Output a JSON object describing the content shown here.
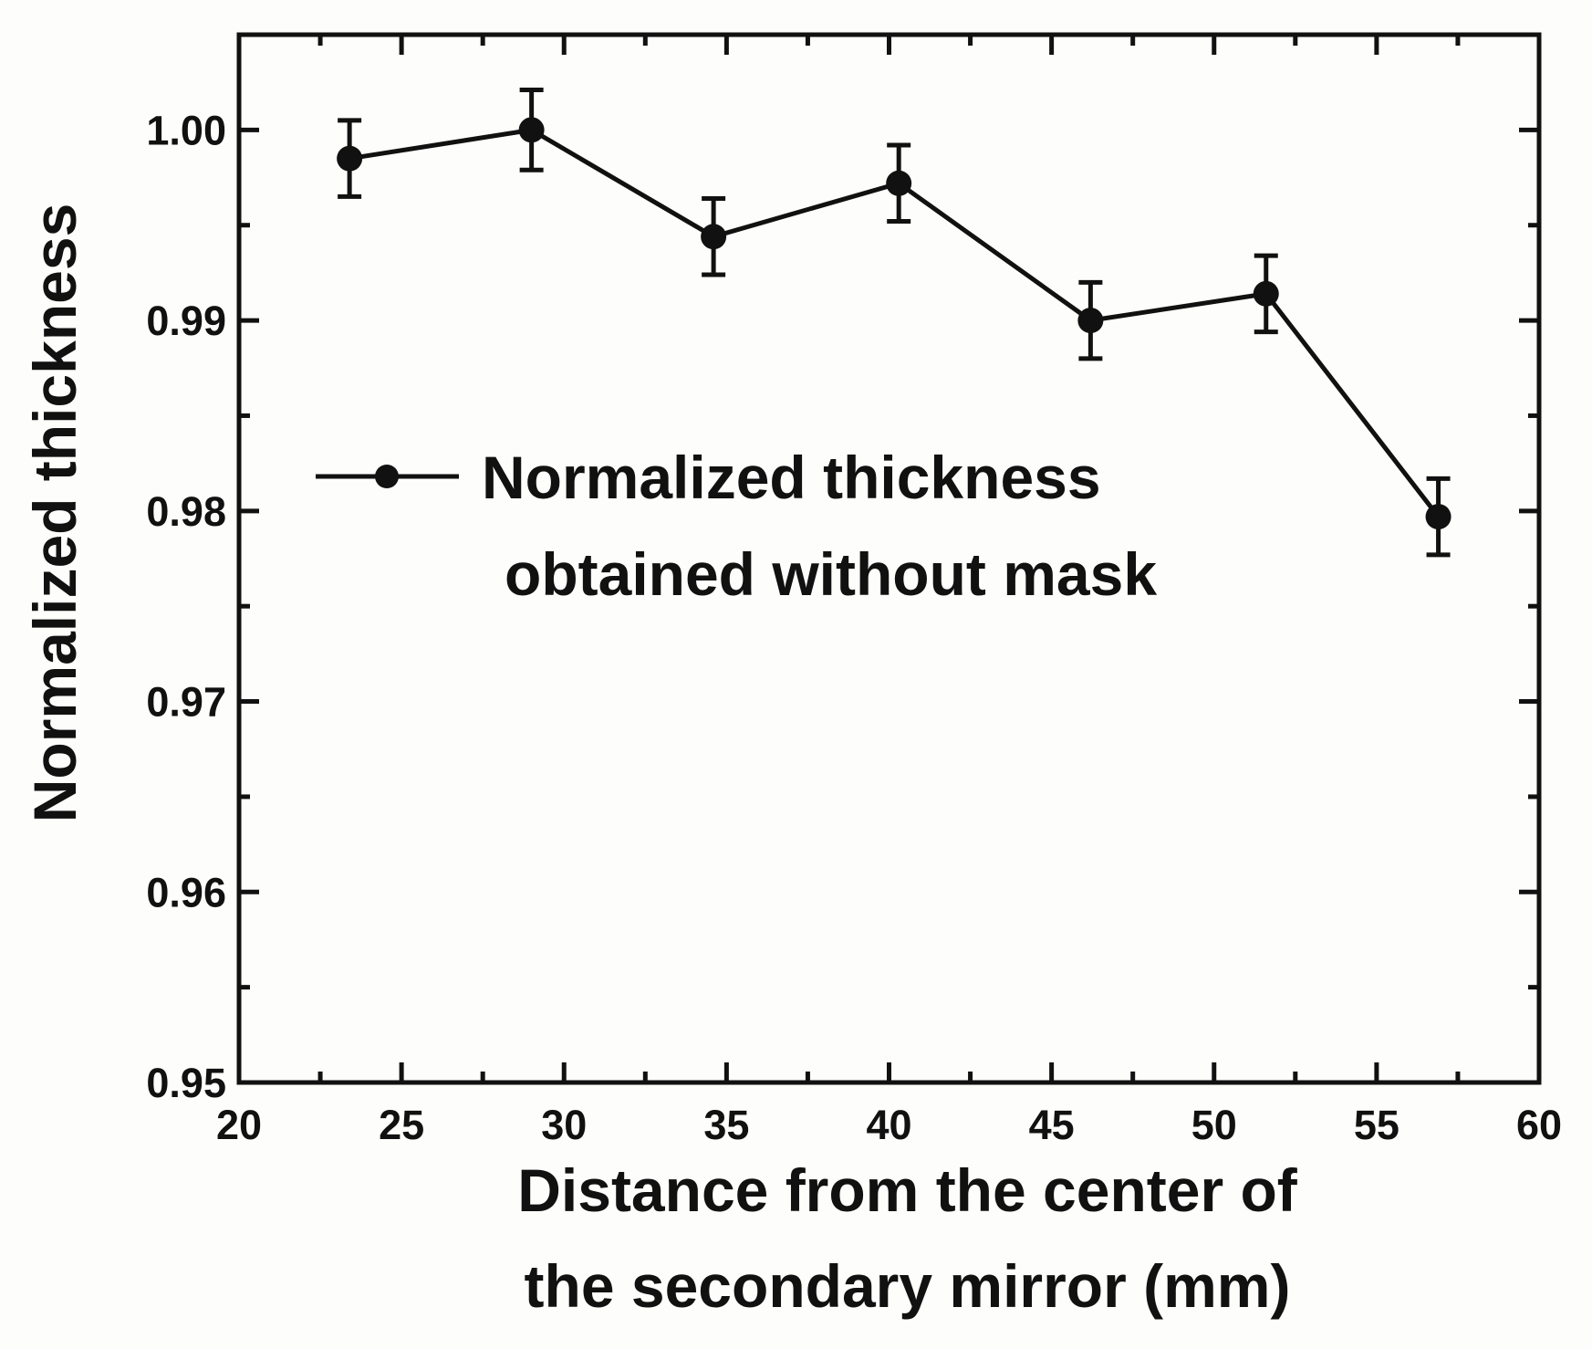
{
  "chart_data": {
    "type": "line",
    "title": "",
    "xlabel": [
      "Distance from the center of",
      "the secondary mirror (mm)"
    ],
    "ylabel": "Normalized thickness",
    "xlim": [
      20,
      60
    ],
    "ylim": [
      0.95,
      1.005
    ],
    "x_ticks": [
      20,
      25,
      30,
      35,
      40,
      45,
      50,
      55,
      60
    ],
    "x_tick_labels": [
      "20",
      "25",
      "30",
      "35",
      "40",
      "45",
      "50",
      "55",
      "60"
    ],
    "y_ticks": [
      0.95,
      0.96,
      0.97,
      0.98,
      0.99,
      1.0
    ],
    "y_tick_labels": [
      "0.95",
      "0.96",
      "0.97",
      "0.98",
      "0.99",
      "1.00"
    ],
    "series": [
      {
        "name": "Normalized thickness obtained without mask",
        "legend_lines": [
          "Normalized thickness",
          "obtained without mask"
        ],
        "color": "#111111",
        "marker": "circle",
        "x": [
          23.4,
          29.0,
          34.6,
          40.3,
          46.2,
          51.6,
          56.9
        ],
        "y": [
          0.9985,
          1.0,
          0.9944,
          0.9972,
          0.99,
          0.9914,
          0.9797
        ],
        "error": [
          0.002,
          0.0021,
          0.002,
          0.002,
          0.002,
          0.002,
          0.002
        ]
      }
    ],
    "legend_position": "center"
  }
}
